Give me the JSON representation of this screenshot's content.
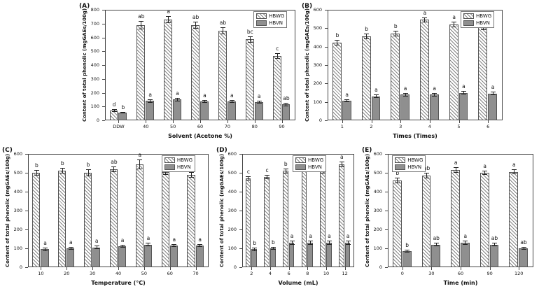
{
  "figure": {
    "background": "#ffffff",
    "colors": {
      "hatch_line": "#6e6e6e",
      "solid_bar": "#8f8f8f",
      "axis": "#444444"
    }
  },
  "chart_data": [
    {
      "type": "bar",
      "panel": "(A)",
      "xlabel": "Solvent (Acetone %)",
      "ylabel": "Content of total phenolic (mgGAEs/100g)",
      "ylim": [
        0,
        800
      ],
      "ytick_step": 100,
      "grid": false,
      "legend_position": "top-right-inside",
      "legend_x": 0.78,
      "categories": [
        "DDW",
        "40",
        "50",
        "60",
        "70",
        "80",
        "90"
      ],
      "series": [
        {
          "name": "HBWG",
          "style": "hatched",
          "values": [
            70,
            690,
            730,
            690,
            650,
            585,
            465
          ],
          "errors": [
            10,
            30,
            25,
            25,
            25,
            25,
            20
          ],
          "letters": [
            "d",
            "ab",
            "a",
            "ab",
            "ab",
            "bc",
            "c"
          ]
        },
        {
          "name": "HBVN",
          "style": "solid",
          "values": [
            55,
            140,
            150,
            135,
            135,
            130,
            115
          ],
          "errors": [
            6,
            12,
            12,
            10,
            10,
            10,
            12
          ],
          "letters": [
            "b",
            "a",
            "a",
            "a",
            "a",
            "a",
            "ab"
          ]
        }
      ]
    },
    {
      "type": "bar",
      "panel": "(B)",
      "xlabel": "Times (Times)",
      "ylabel": "Content of total phenolic (mgGAEs/100g)",
      "ylim": [
        0,
        600
      ],
      "ytick_step": 100,
      "grid": false,
      "legend_position": "top-right-inside",
      "legend_x": 0.76,
      "categories": [
        "1",
        "2",
        "3",
        "4",
        "5",
        "6"
      ],
      "series": [
        {
          "name": "HBWG",
          "style": "hatched",
          "values": [
            420,
            455,
            470,
            545,
            520,
            510
          ],
          "errors": [
            15,
            15,
            15,
            15,
            15,
            20
          ],
          "letters": [
            "b",
            "b",
            "b",
            "a",
            "a",
            "a"
          ]
        },
        {
          "name": "HBVN",
          "style": "solid",
          "values": [
            105,
            130,
            140,
            140,
            150,
            145
          ],
          "errors": [
            8,
            10,
            10,
            10,
            10,
            10
          ],
          "letters": [
            "a",
            "a",
            "a",
            "a",
            "a",
            "a"
          ]
        }
      ]
    },
    {
      "type": "bar",
      "panel": "(C)",
      "xlabel": "Temperature (°C)",
      "ylabel": "Content of total phenolic (mgGAEs/100g)",
      "ylim": [
        0,
        600
      ],
      "ytick_step": 100,
      "grid": false,
      "legend_position": "top-right-inside",
      "legend_x": 0.74,
      "categories": [
        "10",
        "20",
        "30",
        "40",
        "50",
        "60",
        "70"
      ],
      "series": [
        {
          "name": "HBWG",
          "style": "hatched",
          "values": [
            500,
            510,
            500,
            520,
            545,
            505,
            490
          ],
          "errors": [
            15,
            15,
            20,
            15,
            25,
            15,
            15
          ],
          "letters": [
            "b",
            "b",
            "b",
            "ab",
            "a",
            "b",
            "b"
          ]
        },
        {
          "name": "HBVN",
          "style": "solid",
          "values": [
            95,
            100,
            105,
            110,
            120,
            115,
            115
          ],
          "errors": [
            8,
            8,
            8,
            8,
            10,
            8,
            8
          ],
          "letters": [
            "a",
            "a",
            "a",
            "a",
            "a",
            "a",
            "a"
          ]
        }
      ]
    },
    {
      "type": "bar",
      "panel": "(D)",
      "xlabel": "Volume (mL)",
      "ylabel": "Content of total phenolic (mgGAEs/100g)",
      "ylim": [
        0,
        600
      ],
      "ytick_step": 100,
      "grid": false,
      "legend_position": "top-center-inside",
      "legend_x": 0.45,
      "categories": [
        "2",
        "4",
        "6",
        "8",
        "10",
        "12"
      ],
      "series": [
        {
          "name": "HBWG",
          "style": "hatched",
          "values": [
            470,
            478,
            510,
            530,
            510,
            545
          ],
          "errors": [
            12,
            12,
            12,
            15,
            12,
            15
          ],
          "letters": [
            "c",
            "c",
            "b",
            "ab",
            "b",
            "a"
          ]
        },
        {
          "name": "HBVN",
          "style": "solid",
          "values": [
            95,
            100,
            130,
            130,
            130,
            130
          ],
          "errors": [
            8,
            8,
            10,
            10,
            10,
            10
          ],
          "letters": [
            "b",
            "b",
            "a",
            "a",
            "a",
            "a"
          ]
        }
      ]
    },
    {
      "type": "bar",
      "panel": "(E)",
      "xlabel": "Time (min)",
      "ylabel": "Content of total phenolic (mgGAEs/100g)",
      "ylim": [
        0,
        600
      ],
      "ytick_step": 100,
      "grid": false,
      "legend_position": "top-left-inside",
      "legend_x": 0.03,
      "categories": [
        "0",
        "30",
        "60",
        "90",
        "120"
      ],
      "series": [
        {
          "name": "HBWG",
          "style": "hatched",
          "values": [
            460,
            485,
            515,
            500,
            505
          ],
          "errors": [
            15,
            15,
            15,
            12,
            12
          ],
          "letters": [
            "b",
            "ab",
            "a",
            "a",
            "a"
          ]
        },
        {
          "name": "HBVN",
          "style": "solid",
          "values": [
            85,
            120,
            130,
            120,
            100
          ],
          "errors": [
            8,
            10,
            10,
            10,
            8
          ],
          "letters": [
            "b",
            "ab",
            "a",
            "ab",
            "ab"
          ]
        }
      ]
    }
  ]
}
